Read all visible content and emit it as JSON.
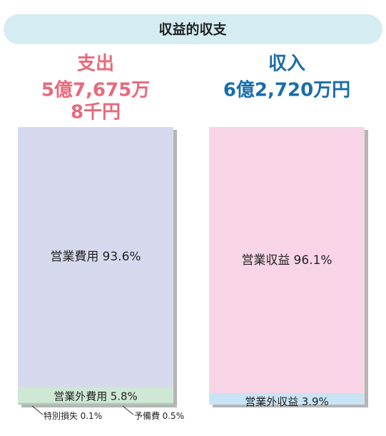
{
  "chart_data": {
    "type": "stacked_column",
    "title": "収益的収支",
    "columns": [
      {
        "heading": "支出",
        "total": [
          "5億7,675万",
          "8千円"
        ],
        "color": "#e8697a",
        "segments": [
          {
            "name": "営業費用",
            "value": 93.6,
            "value_label": "93.6%",
            "color": "#d6d9ee"
          },
          {
            "name": "営業外費用",
            "value": 5.8,
            "value_label": "5.8%",
            "color": "#cfe8d6"
          },
          {
            "name": "特別損失",
            "value": 0.1,
            "value_label": "0.1%",
            "color": "#b9d9c4"
          },
          {
            "name": "予備費",
            "value": 0.5,
            "value_label": "0.5%",
            "color": "#a9cdb6"
          }
        ]
      },
      {
        "heading": "収入",
        "total": [
          "6億2,720万円"
        ],
        "color": "#1a6ea8",
        "segments": [
          {
            "name": "営業収益",
            "value": 96.1,
            "value_label": "96.1%",
            "color": "#f7d4e6"
          },
          {
            "name": "営業外収益",
            "value": 3.9,
            "value_label": "3.9%",
            "color": "#c8e4f4"
          }
        ]
      }
    ]
  }
}
